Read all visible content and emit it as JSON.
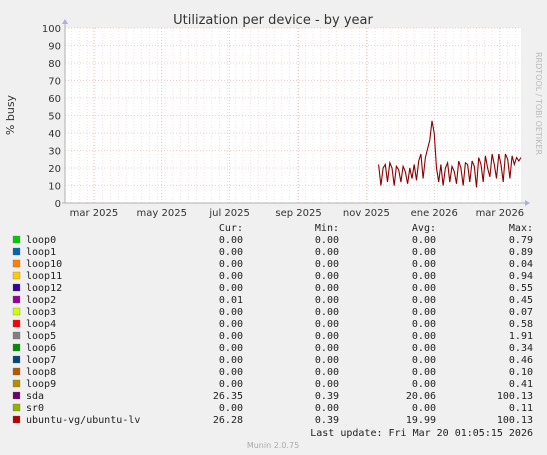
{
  "chart_data": {
    "type": "line",
    "title": "Utilization per device - by year",
    "ylabel": "% busy",
    "xlabel": "",
    "ylim": [
      0,
      100
    ],
    "y_ticks": [
      0,
      10,
      20,
      30,
      40,
      50,
      60,
      70,
      80,
      90,
      100
    ],
    "grid": true,
    "x_ticks": [
      {
        "label": "mar 2025",
        "date": "2025-03-01"
      },
      {
        "label": "may 2025",
        "date": "2025-05-01"
      },
      {
        "label": "jul 2025",
        "date": "2025-07-01"
      },
      {
        "label": "sep 2025",
        "date": "2025-09-01"
      },
      {
        "label": "nov 2025",
        "date": "2025-11-01"
      },
      {
        "label": "ene 2026",
        "date": "2026-01-01"
      },
      {
        "label": "mar 2026",
        "date": "2026-03-01"
      }
    ],
    "x_range": [
      "2025-02-03",
      "2026-03-20"
    ],
    "series": [
      {
        "name": "sda",
        "color": "#8b0000",
        "points": [
          [
            "2025-11-12",
            22
          ],
          [
            "2025-11-14",
            10
          ],
          [
            "2025-11-16",
            20
          ],
          [
            "2025-11-18",
            22
          ],
          [
            "2025-11-20",
            12
          ],
          [
            "2025-11-22",
            23
          ],
          [
            "2025-11-24",
            20
          ],
          [
            "2025-11-26",
            10
          ],
          [
            "2025-11-28",
            21
          ],
          [
            "2025-11-30",
            19
          ],
          [
            "2025-12-02",
            12
          ],
          [
            "2025-12-04",
            21
          ],
          [
            "2025-12-06",
            18
          ],
          [
            "2025-12-08",
            11
          ],
          [
            "2025-12-10",
            20
          ],
          [
            "2025-12-12",
            14
          ],
          [
            "2025-12-14",
            22
          ],
          [
            "2025-12-16",
            13
          ],
          [
            "2025-12-18",
            24
          ],
          [
            "2025-12-20",
            28
          ],
          [
            "2025-12-22",
            14
          ],
          [
            "2025-12-24",
            26
          ],
          [
            "2025-12-26",
            31
          ],
          [
            "2025-12-28",
            36
          ],
          [
            "2025-12-30",
            47
          ],
          [
            "2026-01-01",
            40
          ],
          [
            "2026-01-03",
            20
          ],
          [
            "2026-01-05",
            12
          ],
          [
            "2026-01-07",
            22
          ],
          [
            "2026-01-09",
            10
          ],
          [
            "2026-01-11",
            20
          ],
          [
            "2026-01-13",
            23
          ],
          [
            "2026-01-15",
            12
          ],
          [
            "2026-01-17",
            21
          ],
          [
            "2026-01-19",
            18
          ],
          [
            "2026-01-21",
            11
          ],
          [
            "2026-01-23",
            24
          ],
          [
            "2026-01-25",
            20
          ],
          [
            "2026-01-27",
            10
          ],
          [
            "2026-01-29",
            23
          ],
          [
            "2026-01-31",
            22
          ],
          [
            "2026-02-02",
            12
          ],
          [
            "2026-02-04",
            24
          ],
          [
            "2026-02-06",
            21
          ],
          [
            "2026-02-08",
            9
          ],
          [
            "2026-02-10",
            26
          ],
          [
            "2026-02-12",
            22
          ],
          [
            "2026-02-14",
            12
          ],
          [
            "2026-02-16",
            27
          ],
          [
            "2026-02-18",
            20
          ],
          [
            "2026-02-20",
            15
          ],
          [
            "2026-02-22",
            28
          ],
          [
            "2026-02-24",
            22
          ],
          [
            "2026-02-26",
            14
          ],
          [
            "2026-02-28",
            28
          ],
          [
            "2026-03-02",
            22
          ],
          [
            "2026-03-04",
            12
          ],
          [
            "2026-03-06",
            28
          ],
          [
            "2026-03-08",
            25
          ],
          [
            "2026-03-10",
            14
          ],
          [
            "2026-03-12",
            27
          ],
          [
            "2026-03-14",
            22
          ],
          [
            "2026-03-16",
            26
          ],
          [
            "2026-03-18",
            24
          ],
          [
            "2026-03-20",
            26
          ]
        ]
      }
    ],
    "legend_headers": {
      "cur": "Cur:",
      "min": "Min:",
      "avg": "Avg:",
      "max": "Max:"
    },
    "legend": [
      {
        "name": "loop0",
        "color": "#00cc00",
        "cur": "0.00",
        "min": "0.00",
        "avg": "0.00",
        "max": "0.79"
      },
      {
        "name": "loop1",
        "color": "#0066b3",
        "cur": "0.00",
        "min": "0.00",
        "avg": "0.00",
        "max": "0.89"
      },
      {
        "name": "loop10",
        "color": "#ff8000",
        "cur": "0.00",
        "min": "0.00",
        "avg": "0.00",
        "max": "0.04"
      },
      {
        "name": "loop11",
        "color": "#ffcc00",
        "cur": "0.00",
        "min": "0.00",
        "avg": "0.00",
        "max": "0.94"
      },
      {
        "name": "loop12",
        "color": "#330099",
        "cur": "0.00",
        "min": "0.00",
        "avg": "0.00",
        "max": "0.55"
      },
      {
        "name": "loop2",
        "color": "#990099",
        "cur": "0.01",
        "min": "0.00",
        "avg": "0.00",
        "max": "0.45"
      },
      {
        "name": "loop3",
        "color": "#ccff00",
        "cur": "0.00",
        "min": "0.00",
        "avg": "0.00",
        "max": "0.07"
      },
      {
        "name": "loop4",
        "color": "#ff0000",
        "cur": "0.00",
        "min": "0.00",
        "avg": "0.00",
        "max": "0.58"
      },
      {
        "name": "loop5",
        "color": "#808080",
        "cur": "0.00",
        "min": "0.00",
        "avg": "0.00",
        "max": "1.91"
      },
      {
        "name": "loop6",
        "color": "#008f00",
        "cur": "0.00",
        "min": "0.00",
        "avg": "0.00",
        "max": "0.34"
      },
      {
        "name": "loop7",
        "color": "#00487d",
        "cur": "0.00",
        "min": "0.00",
        "avg": "0.00",
        "max": "0.46"
      },
      {
        "name": "loop8",
        "color": "#b35a00",
        "cur": "0.00",
        "min": "0.00",
        "avg": "0.00",
        "max": "0.10"
      },
      {
        "name": "loop9",
        "color": "#b38f00",
        "cur": "0.00",
        "min": "0.00",
        "avg": "0.00",
        "max": "0.41"
      },
      {
        "name": "sda",
        "color": "#6b006b",
        "cur": "26.35",
        "min": "0.39",
        "avg": "20.06",
        "max": "100.13"
      },
      {
        "name": "sr0",
        "color": "#8fb300",
        "cur": "0.00",
        "min": "0.00",
        "avg": "0.00",
        "max": "0.11"
      },
      {
        "name": "ubuntu-vg/ubuntu-lv",
        "color": "#b30000",
        "cur": "26.28",
        "min": "0.39",
        "avg": "19.99",
        "max": "100.13"
      }
    ],
    "last_update": "Last update: Fri Mar 20 01:05:15 2026",
    "side_text": "RRDTOOL / TOBI OETIKER",
    "footer": "Munin 2.0.75"
  }
}
